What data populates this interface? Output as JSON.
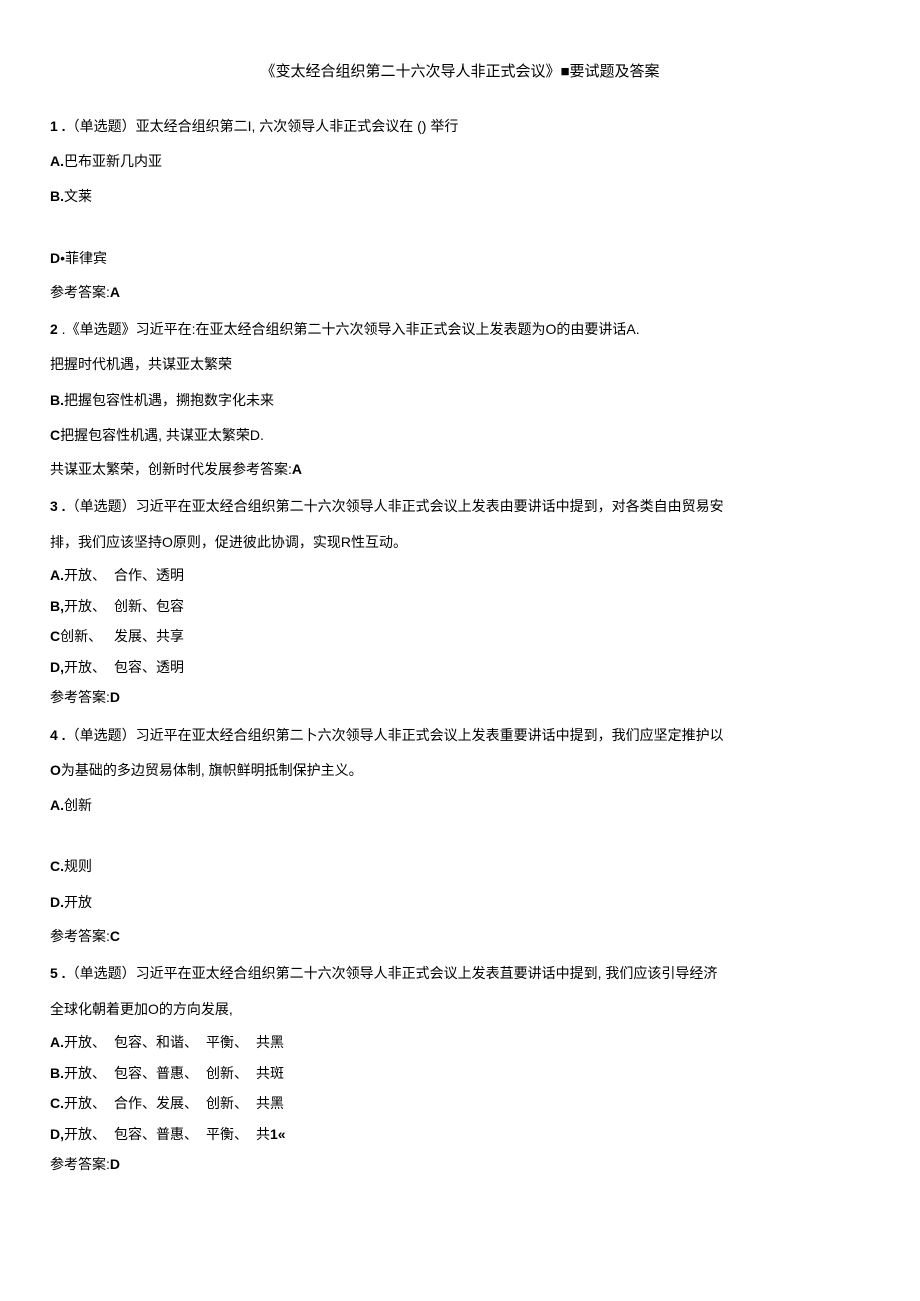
{
  "title": "《变太经合组织第二十六次导人非正式会议》■要试题及答案",
  "q1": {
    "stem_prefix": "1 .",
    "stem": "（单选题）亚太经合组织第二I, 六次领导人非正式会议在 () 举行",
    "optA": "A.巴布亚新几内亚",
    "optB": "B.文莱",
    "optD": "D•菲律宾",
    "answer_label": "参考答案:",
    "answer_value": "A"
  },
  "q2": {
    "stem_prefix": "2",
    "stem": " .《单选题》习近平在:在亚太经合组织第二十六次领导入非正式会议上发表题为O的由要讲话A.",
    "line2": "把握时代机遇，共谋亚太繁荣",
    "optB": "B.把握包容性机遇，搠抱数字化未来",
    "optC": "C把握包容性机遇, 共谋亚太繁荣D.",
    "line5": "共谋亚太繁荣，创新时代发展参考答案:",
    "answer_value": "A"
  },
  "q3": {
    "stem_prefix": "3 .",
    "stem": "（单选题）习近平在亚太经合组织第二十六次领导人非正式会议上发表由要讲话中提到，对各类自由贸易安",
    "stem_cont": "排，我们应该坚持O原则，促进彼此协调，实现R性互动。",
    "col1": [
      "A.开放、",
      "B,开放、",
      "C创新、",
      "D,开放、"
    ],
    "col2": [
      "合作、透明",
      "创新、包容",
      "发展、共享",
      "包容、透明"
    ],
    "answer_label": "参考答案:",
    "answer_value": "D"
  },
  "q4": {
    "stem_prefix": "4 .",
    "stem": "（单选题）习近平在亚太经合组织第二卜六次领导人非正式会议上发表重要讲话中提到，我们应坚定推护以",
    "stem_cont": "O为基础的多边贸易体制, 旗帜鲜明抵制保护主义。",
    "optA": "A.创新",
    "optC": "C.规则",
    "optD": "D.开放",
    "answer_label": "参考答案:",
    "answer_value": "C"
  },
  "q5": {
    "stem_prefix": "5 .",
    "stem": "（单选题）习近平在亚太经合组织第二十六次领导人非正式会议上发表苴要讲话中提到, 我们应该引导经济",
    "stem_cont": "全球化朝着更加O的方向发展,",
    "col1": [
      "A.开放、",
      "B.开放、",
      "C.开放、",
      "D,开放、"
    ],
    "col2": [
      "包容、和谐、",
      "包容、普惠、",
      "合作、发展、",
      "包容、普惠、"
    ],
    "col3": [
      "平衡、",
      "创新、",
      "创新、",
      "平衡、"
    ],
    "col4": [
      "共黑",
      "共斑",
      "共黑",
      "共1«"
    ],
    "answer_label": "参考答案:",
    "answer_value": "D"
  }
}
